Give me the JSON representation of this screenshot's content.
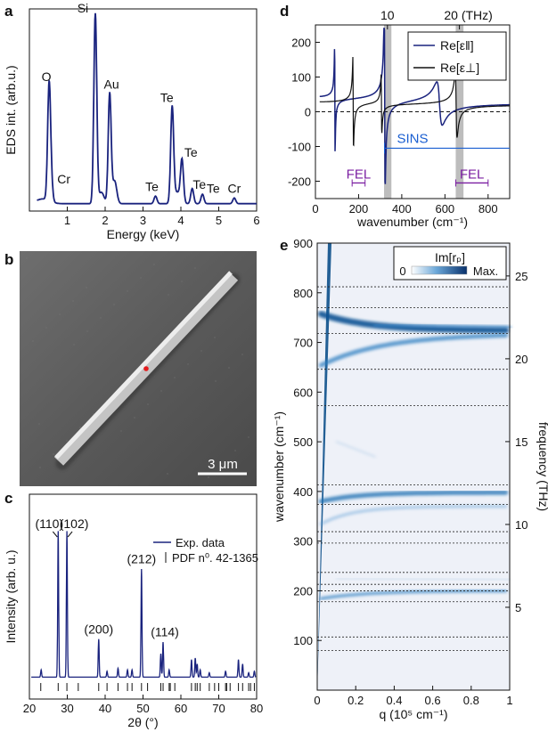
{
  "chart_data": [
    {
      "panel": "a",
      "type": "line",
      "xlabel": "Energy (keV)",
      "ylabel": "EDS int. (arb.u.)",
      "xlim": [
        0,
        6
      ],
      "xticks": [
        "1",
        "2",
        "3",
        "4",
        "5",
        "6"
      ],
      "color": "#1a237e",
      "peaks": [
        {
          "label": "O",
          "x": 0.52,
          "y": 0.61
        },
        {
          "label": "Cr",
          "x": 0.58,
          "y": 0.08
        },
        {
          "label": "Si",
          "x": 1.74,
          "y": 1.0
        },
        {
          "label": "Au",
          "x": 2.12,
          "y": 0.58
        },
        {
          "label": "Te",
          "x": 3.33,
          "y": 0.04
        },
        {
          "label": "Te",
          "x": 3.77,
          "y": 0.5
        },
        {
          "label": "Te",
          "x": 4.03,
          "y": 0.22
        },
        {
          "label": "Te",
          "x": 4.3,
          "y": 0.08
        },
        {
          "label": "Te",
          "x": 4.57,
          "y": 0.05
        },
        {
          "label": "Cr",
          "x": 5.41,
          "y": 0.03
        }
      ]
    },
    {
      "panel": "b",
      "type": "image",
      "scalebar": "3 μm"
    },
    {
      "panel": "c",
      "type": "line",
      "xlabel": "2θ (°)",
      "ylabel": "Intensity (arb. u.)",
      "xlim": [
        20,
        80
      ],
      "xticks": [
        "20",
        "30",
        "40",
        "50",
        "60",
        "70",
        "80"
      ],
      "legend": [
        "Exp. data",
        "PDF n⁰. 42-1365"
      ],
      "color": "#1a237e",
      "peaks": [
        {
          "label": "(110)",
          "x": 27.6,
          "y": 1.0
        },
        {
          "label": "(102)",
          "x": 29.9,
          "y": 1.0
        },
        {
          "label": "(200)",
          "x": 38.3,
          "y": 0.26
        },
        {
          "label": "(212)",
          "x": 49.6,
          "y": 0.74
        },
        {
          "label": "(114)",
          "x": 55.3,
          "y": 0.24
        }
      ],
      "minor_peaks": [
        {
          "x": 23.1,
          "y": 0.05
        },
        {
          "x": 40.5,
          "y": 0.04
        },
        {
          "x": 43.4,
          "y": 0.06
        },
        {
          "x": 45.9,
          "y": 0.05
        },
        {
          "x": 47.1,
          "y": 0.05
        },
        {
          "x": 54.7,
          "y": 0.16
        },
        {
          "x": 56.9,
          "y": 0.05
        },
        {
          "x": 62.8,
          "y": 0.12
        },
        {
          "x": 63.8,
          "y": 0.13
        },
        {
          "x": 64.3,
          "y": 0.09
        },
        {
          "x": 65.1,
          "y": 0.05
        },
        {
          "x": 67.5,
          "y": 0.03
        },
        {
          "x": 71.8,
          "y": 0.04
        },
        {
          "x": 75.2,
          "y": 0.12
        },
        {
          "x": 76.3,
          "y": 0.09
        },
        {
          "x": 77.9,
          "y": 0.03
        },
        {
          "x": 79.4,
          "y": 0.04
        }
      ],
      "reference_lines": [
        23.0,
        27.6,
        29.9,
        32.9,
        38.3,
        40.5,
        43.4,
        45.9,
        47.1,
        49.6,
        51.2,
        54.7,
        55.3,
        56.9,
        57.2,
        58.4,
        62.8,
        63.8,
        64.3,
        65.1,
        67.5,
        68.9,
        70.0,
        71.8,
        72.1,
        73.0,
        75.2,
        76.3,
        77.9,
        78.4,
        79.4
      ]
    },
    {
      "panel": "d",
      "type": "line",
      "xlabel": "wavenumber (cm⁻¹)",
      "xlim": [
        0,
        900
      ],
      "ylim": [
        -250,
        250
      ],
      "xticks": [
        "0",
        "200",
        "400",
        "600",
        "800"
      ],
      "yticks": [
        "-200",
        "-100",
        "0",
        "100",
        "200"
      ],
      "top_ticks": [
        "10",
        "20 (THz)"
      ],
      "series": [
        {
          "name": "Re[ε‖]",
          "color": "#1a237e"
        },
        {
          "name": "Re[ε⊥]",
          "color": "#111111"
        }
      ],
      "shaded_bands": [
        [
          318,
          352
        ],
        [
          650,
          686
        ]
      ],
      "annotations": [
        {
          "text": "SINS",
          "range": [
            320,
            900
          ],
          "y": -105,
          "color": "#1a5fd1"
        },
        {
          "text": "FEL",
          "range": [
            170,
            230
          ],
          "y": -205,
          "color": "#7b1fa2"
        },
        {
          "text": "FEL",
          "range": [
            650,
            800
          ],
          "y": -205,
          "color": "#7b1fa2"
        }
      ]
    },
    {
      "panel": "e",
      "type": "heatmap",
      "xlabel": "q (10⁵ cm⁻¹)",
      "ylabel": "wavenumber (cm⁻¹)",
      "ylabel_right": "frequency (THz)",
      "xlim": [
        0,
        1
      ],
      "ylim": [
        0,
        900
      ],
      "xticks": [
        "0",
        "0.2",
        "0.4",
        "0.6",
        "0.8",
        "1"
      ],
      "yticks": [
        "100",
        "200",
        "300",
        "400",
        "500",
        "600",
        "700",
        "800",
        "900"
      ],
      "right_ticks": [
        "5",
        "10",
        "15",
        "20",
        "25"
      ],
      "colorbar": {
        "label": "Im[rₚ]",
        "min": "0",
        "max": "Max."
      },
      "dashed_lines": [
        80,
        107,
        178,
        200,
        213,
        237,
        296,
        319,
        374,
        413,
        573,
        646,
        718,
        770,
        812
      ]
    }
  ]
}
